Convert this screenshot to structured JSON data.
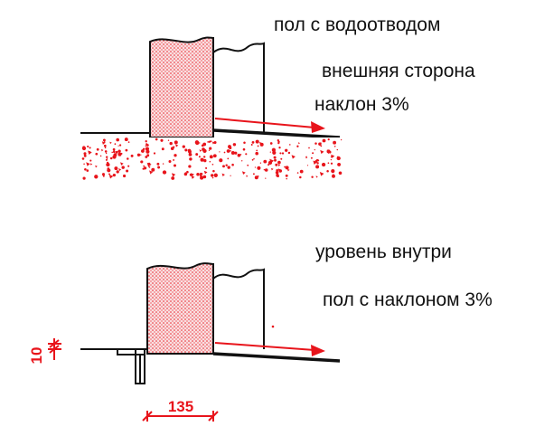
{
  "labels": {
    "floor_drainage": "пол с водоотводом",
    "outer_side": "внешняя сторона",
    "slope_top": "наклон 3%",
    "level_inside": "уровень внутри",
    "floor_slope": "пол с наклоном 3%"
  },
  "dimensions": {
    "width": "135",
    "height": "10"
  },
  "colors": {
    "line": "#111111",
    "accent": "#e8141b",
    "hatch_fill": "#f7d6d8"
  }
}
